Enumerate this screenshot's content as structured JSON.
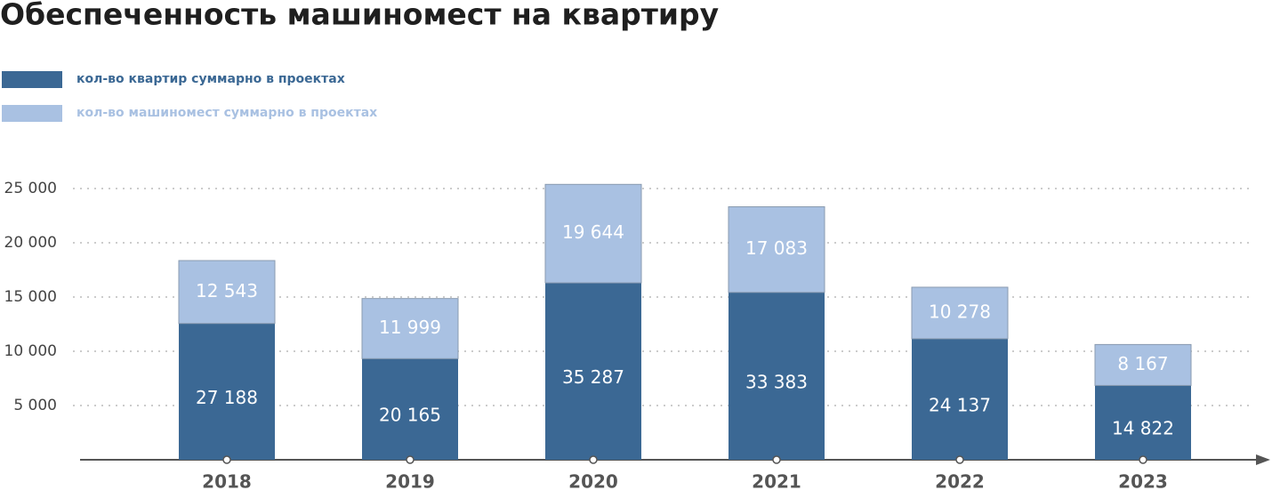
{
  "chart_data": {
    "type": "stacked_bar",
    "title": "Обеспеченность машиномест на квартиру",
    "categories": [
      "2018",
      "2019",
      "2020",
      "2021",
      "2022",
      "2023"
    ],
    "series": [
      {
        "name": "кол-во квартир суммарно в проектах",
        "color": "#3b6894",
        "axis": "y2",
        "values": [
          27188,
          20165,
          35287,
          33383,
          24137,
          14822
        ],
        "value_labels": [
          "27 188",
          "20 165",
          "35 287",
          "33 383",
          "24 137",
          "14 822"
        ]
      },
      {
        "name": "кол-во машиномест суммарно в проектах",
        "color": "#a9c1e2",
        "axis": "y2",
        "values": [
          12543,
          11999,
          19644,
          17083,
          10278,
          8167
        ],
        "value_labels": [
          "12 543",
          "11 999",
          "19 644",
          "17 083",
          "10 278",
          "8 167"
        ]
      }
    ],
    "ylim": [
      0,
      25000
    ],
    "yticks": [
      {
        "value": 5000,
        "label": "5 000"
      },
      {
        "value": 10000,
        "label": "10 000"
      },
      {
        "value": 15000,
        "label": "15 000"
      },
      {
        "value": 20000,
        "label": "20 000"
      },
      {
        "value": 25000,
        "label": "25 000"
      }
    ],
    "y2lim": [
      0,
      54100
    ],
    "grid": true,
    "legend": "top-left"
  }
}
